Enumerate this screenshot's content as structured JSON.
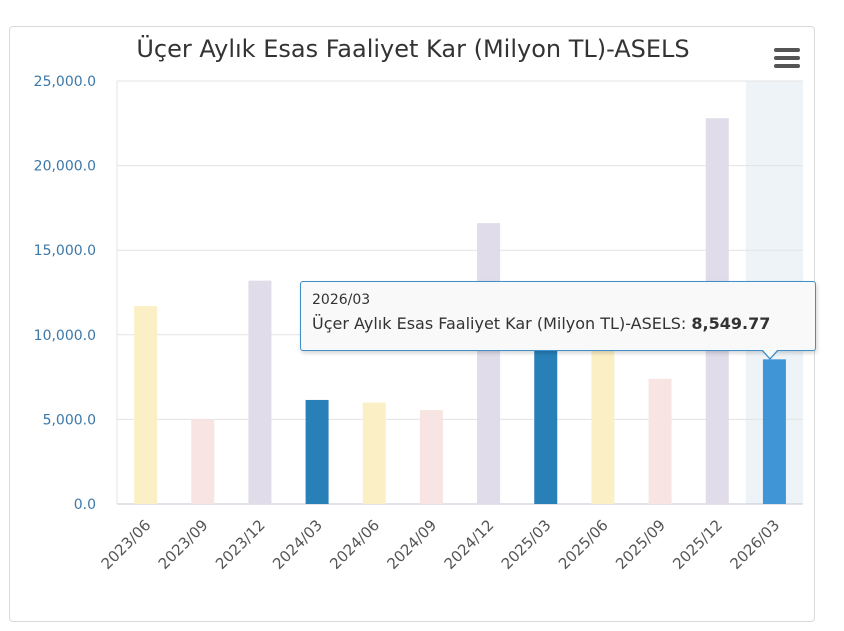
{
  "chart_data": {
    "type": "bar",
    "title": "Üçer Aylık Esas Faaliyet Kar (Milyon TL)-ASELS",
    "categories": [
      "2023/06",
      "2023/09",
      "2023/12",
      "2024/03",
      "2024/06",
      "2024/09",
      "2024/12",
      "2025/03",
      "2025/06",
      "2025/09",
      "2025/12",
      "2026/03"
    ],
    "series": [
      {
        "name": "Üçer Aylık Esas Faaliyet Kar (Milyon TL)-ASELS",
        "values": [
          11700,
          5000,
          13200,
          6150,
          6000,
          5550,
          16600,
          9650,
          9500,
          7400,
          22800,
          8549.77
        ]
      }
    ],
    "ylim": [
      0,
      25000
    ],
    "yticks": [
      "0.0",
      "5,000.0",
      "10,000.0",
      "15,000.0",
      "20,000.0",
      "25,000.0"
    ],
    "grid": true,
    "highlighted_category": "2026/03",
    "bar_colors": [
      "#fbf0c5",
      "#f8e4e2",
      "#e0dce9",
      "#2980b9",
      "#fbf0c5",
      "#f8e4e2",
      "#e0dce9",
      "#2980b9",
      "#fbf0c5",
      "#f8e4e2",
      "#e0dce9",
      "#3f95d6"
    ],
    "hover_band_color": "#eef3f8",
    "axis_label_color": "#3c78a8",
    "category_label_color": "#555555"
  },
  "tooltip": {
    "category": "2026/03",
    "series_label": "Üçer Aylık Esas Faaliyet Kar (Milyon TL)-ASELS:",
    "value": "8,549.77"
  },
  "menu": {
    "icon": "hamburger-menu-icon"
  }
}
